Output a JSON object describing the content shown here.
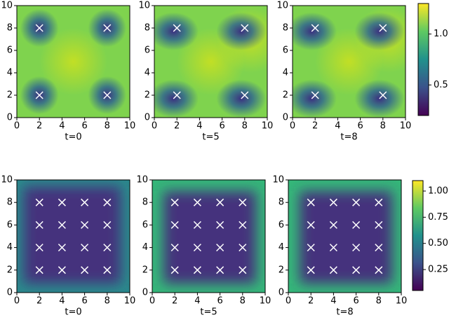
{
  "chart_data": [
    {
      "type": "scatter",
      "xlabel": "t=0",
      "x": [
        2,
        2,
        8,
        8
      ],
      "y": [
        2,
        8,
        2,
        8
      ],
      "marker_color": "#ffffff",
      "xlim": [
        0,
        10
      ],
      "ylim": [
        0,
        10
      ],
      "xticks": [
        0,
        2,
        4,
        6,
        8,
        10
      ],
      "yticks": [
        0,
        2,
        4,
        6,
        8,
        10
      ]
    },
    {
      "type": "scatter",
      "xlabel": "t=5",
      "x": [
        2,
        2,
        8,
        8
      ],
      "y": [
        2,
        8,
        2,
        8
      ],
      "marker_color": "#ffffff",
      "xlim": [
        0,
        10
      ],
      "ylim": [
        0,
        10
      ],
      "xticks": [
        0,
        2,
        4,
        6,
        8,
        10
      ],
      "yticks": [
        0,
        2,
        4,
        6,
        8,
        10
      ]
    },
    {
      "type": "scatter",
      "xlabel": "t=8",
      "x": [
        2,
        2,
        8,
        8
      ],
      "y": [
        2,
        8,
        2,
        8
      ],
      "marker_color": "#ffffff",
      "xlim": [
        0,
        10
      ],
      "ylim": [
        0,
        10
      ],
      "xticks": [
        0,
        2,
        4,
        6,
        8,
        10
      ],
      "yticks": [
        0,
        2,
        4,
        6,
        8,
        10
      ]
    },
    {
      "type": "scatter",
      "xlabel": "t=0",
      "x": [
        2,
        4,
        6,
        8,
        2,
        4,
        6,
        8,
        2,
        4,
        6,
        8,
        2,
        4,
        6,
        8
      ],
      "y": [
        2,
        2,
        2,
        2,
        4,
        4,
        4,
        4,
        6,
        6,
        6,
        6,
        8,
        8,
        8,
        8
      ],
      "marker_color": "#ffffff",
      "xlim": [
        0,
        10
      ],
      "ylim": [
        0,
        10
      ],
      "xticks": [
        0,
        2,
        4,
        6,
        8,
        10
      ],
      "yticks": [
        0,
        2,
        4,
        6,
        8,
        10
      ]
    },
    {
      "type": "scatter",
      "xlabel": "t=5",
      "x": [
        2,
        4,
        6,
        8,
        2,
        4,
        6,
        8,
        2,
        4,
        6,
        8,
        2,
        4,
        6,
        8
      ],
      "y": [
        2,
        2,
        2,
        2,
        4,
        4,
        4,
        4,
        6,
        6,
        6,
        6,
        8,
        8,
        8,
        8
      ],
      "marker_color": "#ffffff",
      "xlim": [
        0,
        10
      ],
      "ylim": [
        0,
        10
      ],
      "xticks": [
        0,
        2,
        4,
        6,
        8,
        10
      ],
      "yticks": [
        0,
        2,
        4,
        6,
        8,
        10
      ]
    },
    {
      "type": "scatter",
      "xlabel": "t=8",
      "x": [
        2,
        4,
        6,
        8,
        2,
        4,
        6,
        8,
        2,
        4,
        6,
        8,
        2,
        4,
        6,
        8
      ],
      "y": [
        2,
        2,
        2,
        2,
        4,
        4,
        4,
        4,
        6,
        6,
        6,
        6,
        8,
        8,
        8,
        8
      ],
      "marker_color": "#ffffff",
      "xlim": [
        0,
        10
      ],
      "ylim": [
        0,
        10
      ],
      "xticks": [
        0,
        2,
        4,
        6,
        8,
        10
      ],
      "yticks": [
        0,
        2,
        4,
        6,
        8,
        10
      ]
    },
    {
      "type": "colorbar",
      "ylim": [
        0.2,
        1.3
      ],
      "yticks": [
        0.5,
        {
          "value": 1,
          "label": "1.0"
        }
      ]
    },
    {
      "type": "colorbar",
      "ylim": [
        0.05,
        1.1
      ],
      "yticks": [
        0.25,
        {
          "value": 0.5,
          "label": "0.50"
        },
        0.75,
        {
          "value": 1,
          "label": "1.00"
        }
      ]
    }
  ]
}
